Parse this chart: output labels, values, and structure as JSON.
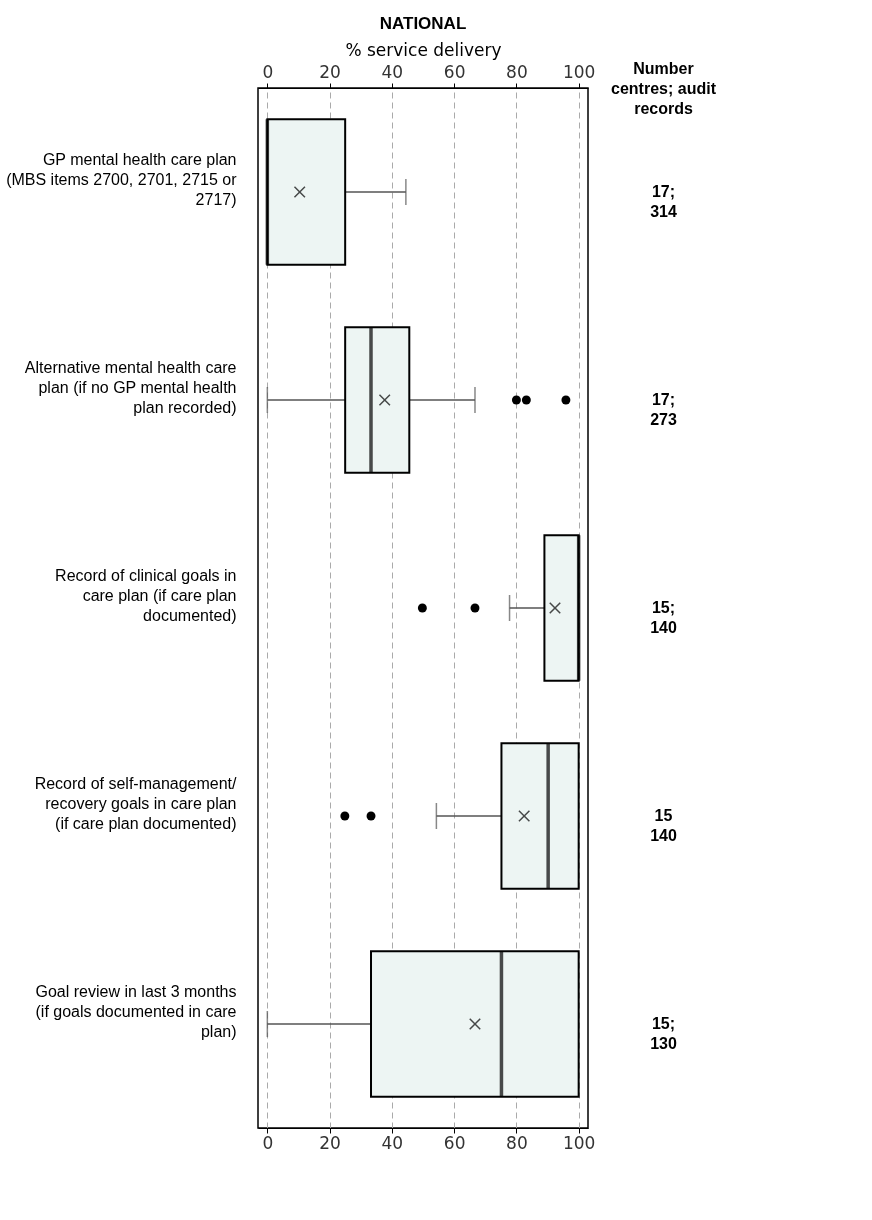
{
  "chart_data": {
    "type": "box",
    "title": "NATIONAL",
    "x2label": "% service delivery",
    "y2label": "Number centres; audit records",
    "orientation": "horizontal",
    "categories": [
      "GP mental health care plan (MBS items 2700, 2701, 2715 or 2717)",
      "Alternative mental health care plan (if no GP mental health plan recorded)",
      "Record of clinical goals in care plan (if care plan documented)",
      "Record of self-management/ recovery goals in care plan (if care plan documented)",
      "Goal review in last 3 months (if goals documented in care plan)"
    ],
    "y2_categories": [
      "17;\n314",
      "17;\n273",
      "15;\n140",
      "15\n140",
      "15;\n130"
    ],
    "boxes": [
      {
        "low": 0,
        "q1": 0,
        "median": 0,
        "q3": 25,
        "high": 44.5,
        "mean": 10.4
      },
      {
        "low": 0,
        "q1": 25,
        "median": 33.3,
        "q3": 45.6,
        "high": 66.7,
        "mean": 37.7,
        "outliers": [
          80,
          83.2,
          95.9
        ]
      },
      {
        "low": 77.8,
        "q1": 89,
        "median": 100,
        "q3": 100,
        "high": 100,
        "mean": 92.4,
        "outliers": [
          49.8,
          66.7
        ]
      },
      {
        "low": 54.3,
        "q1": 75.2,
        "median": 90.2,
        "q3": 100,
        "high": 100,
        "mean": 82.5,
        "outliers": [
          24.9,
          33.3
        ]
      },
      {
        "low": 0,
        "q1": 33.3,
        "median": 75.2,
        "q3": 100,
        "high": 100,
        "mean": 66.7
      }
    ],
    "xlim": [
      -3,
      103
    ],
    "xticks": [
      0,
      20,
      40,
      60,
      80,
      100
    ],
    "x2lim": [
      -3,
      103
    ],
    "x2ticks": [
      0,
      20,
      40,
      60,
      80,
      100
    ],
    "grid": "x"
  }
}
